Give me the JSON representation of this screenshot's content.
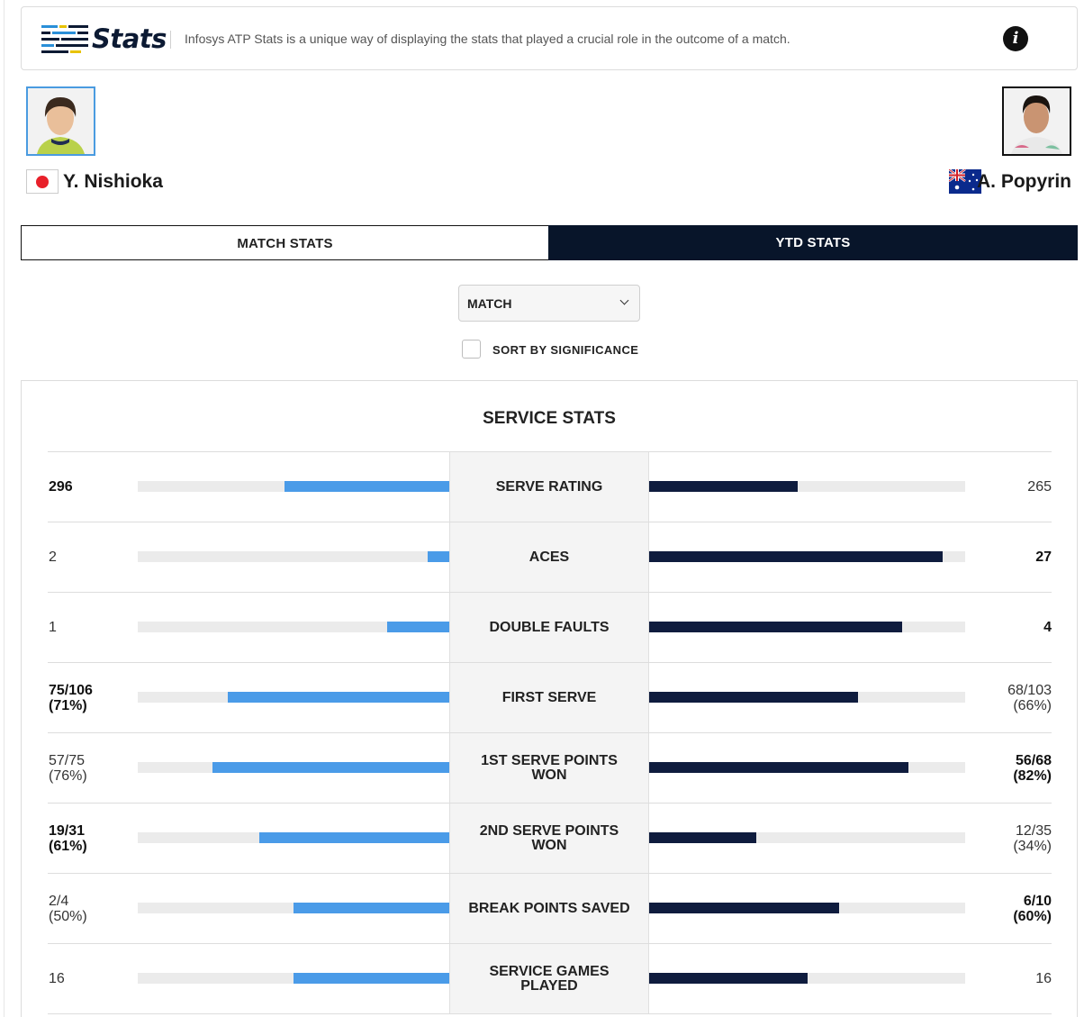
{
  "header": {
    "logo_text": "Stats",
    "description": "Infosys ATP Stats is a unique way of displaying the stats that played a crucial role in the outcome of a match."
  },
  "players": {
    "left": {
      "name": "Y. Nishioka",
      "flag": "jp-flag"
    },
    "right": {
      "name": "A. Popyrin",
      "flag": "au-flag"
    }
  },
  "tabs": [
    {
      "label": "MATCH STATS",
      "active": false
    },
    {
      "label": "YTD STATS",
      "active": true
    }
  ],
  "filter": {
    "selected": "MATCH"
  },
  "sort": {
    "label": "SORT BY SIGNIFICANCE",
    "checked": false
  },
  "section": {
    "title": "SERVICE STATS",
    "rows": [
      {
        "label": "SERVE RATING",
        "left": "296",
        "left_sub": "",
        "left_bold": true,
        "right": "265",
        "right_sub": "",
        "right_bold": false,
        "left_fill": 0.528,
        "right_fill": 0.47
      },
      {
        "label": "ACES",
        "left": "2",
        "left_sub": "",
        "left_bold": false,
        "right": "27",
        "right_sub": "",
        "right_bold": true,
        "left_fill": 0.07,
        "right_fill": 0.93
      },
      {
        "label": "DOUBLE FAULTS",
        "left": "1",
        "left_sub": "",
        "left_bold": false,
        "right": "4",
        "right_sub": "",
        "right_bold": true,
        "left_fill": 0.2,
        "right_fill": 0.8
      },
      {
        "label": "FIRST SERVE",
        "left": "75/106",
        "left_sub": "(71%)",
        "left_bold": true,
        "right": "68/103",
        "right_sub": "(66%)",
        "right_bold": false,
        "left_fill": 0.71,
        "right_fill": 0.66
      },
      {
        "label": "1ST SERVE POINTS WON",
        "left": "57/75",
        "left_sub": "(76%)",
        "left_bold": false,
        "right": "56/68",
        "right_sub": "(82%)",
        "right_bold": true,
        "left_fill": 0.76,
        "right_fill": 0.82
      },
      {
        "label": "2ND SERVE POINTS WON",
        "left": "19/31",
        "left_sub": "(61%)",
        "left_bold": true,
        "right": "12/35",
        "right_sub": "(34%)",
        "right_bold": false,
        "left_fill": 0.61,
        "right_fill": 0.34
      },
      {
        "label": "BREAK POINTS SAVED",
        "left": "2/4",
        "left_sub": "(50%)",
        "left_bold": false,
        "right": "6/10",
        "right_sub": "(60%)",
        "right_bold": true,
        "left_fill": 0.5,
        "right_fill": 0.6
      },
      {
        "label": "SERVICE GAMES PLAYED",
        "left": "16",
        "left_sub": "",
        "left_bold": false,
        "right": "16",
        "right_sub": "",
        "right_bold": false,
        "left_fill": 0.5,
        "right_fill": 0.5
      }
    ]
  },
  "colors": {
    "left_player": "#4a9be8",
    "right_player": "#0f1c3e",
    "active_tab": "#08152a"
  }
}
